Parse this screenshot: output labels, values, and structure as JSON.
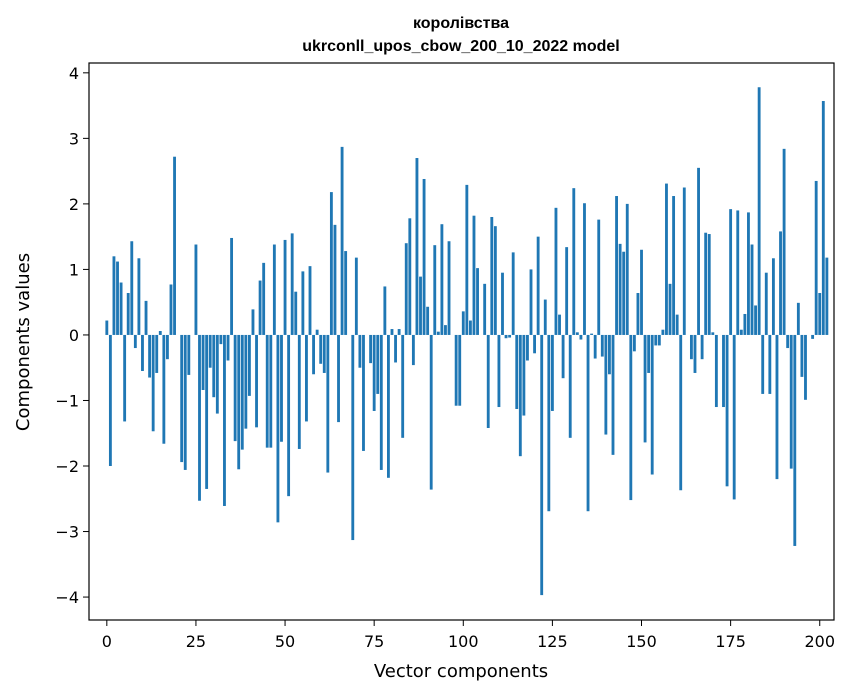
{
  "chart_data": {
    "type": "bar",
    "title": "королівства",
    "subtitle": "ukrconll_upos_cbow_200_10_2022 model",
    "xlabel": "Vector components",
    "ylabel": "Components values",
    "xlim": [
      -5,
      204
    ],
    "ylim": [
      -4.35,
      4.15
    ],
    "xticks": [
      0,
      25,
      50,
      75,
      100,
      125,
      150,
      175,
      200
    ],
    "yticks": [
      -4,
      -3,
      -2,
      -1,
      0,
      1,
      2,
      3,
      4
    ],
    "xtick_labels": [
      "0",
      "25",
      "50",
      "75",
      "100",
      "125",
      "150",
      "175",
      "200"
    ],
    "ytick_labels": [
      "−4",
      "−3",
      "−2",
      "−1",
      "0",
      "1",
      "2",
      "3",
      "4"
    ],
    "grid": false,
    "color": "#1f77b4",
    "values": [
      0.22,
      -2.0,
      1.2,
      1.12,
      0.8,
      -1.32,
      0.64,
      1.43,
      -0.2,
      1.17,
      -0.55,
      0.52,
      -0.65,
      -1.47,
      -0.58,
      0.06,
      -1.66,
      -0.37,
      0.77,
      2.72,
      0.0,
      -1.94,
      -2.06,
      -0.61,
      0.0,
      1.38,
      -2.53,
      -0.84,
      -2.35,
      -0.5,
      -0.95,
      -1.2,
      -0.14,
      -2.61,
      -0.39,
      1.48,
      -1.62,
      -2.05,
      -1.75,
      -1.43,
      -0.93,
      0.39,
      -1.41,
      0.83,
      1.1,
      -1.72,
      -1.72,
      1.38,
      -2.86,
      -1.63,
      1.45,
      -2.46,
      1.55,
      0.66,
      -1.74,
      0.97,
      -1.32,
      1.05,
      -0.6,
      0.08,
      -0.44,
      -0.58,
      -2.1,
      2.18,
      1.68,
      -1.33,
      2.87,
      1.28,
      0.0,
      -3.13,
      1.18,
      -0.5,
      -1.77,
      0.0,
      -0.43,
      -1.16,
      -0.9,
      -2.06,
      0.74,
      -2.18,
      0.09,
      -0.42,
      0.09,
      -1.57,
      1.4,
      1.78,
      -0.46,
      2.7,
      0.89,
      2.38,
      0.43,
      -2.36,
      1.37,
      0.05,
      1.69,
      0.15,
      1.43,
      0.0,
      -1.08,
      -1.08,
      0.36,
      2.29,
      0.22,
      1.82,
      1.02,
      0.0,
      0.78,
      -1.42,
      1.8,
      1.66,
      -1.1,
      0.95,
      -0.05,
      -0.04,
      1.26,
      -1.13,
      -1.85,
      -1.23,
      -0.39,
      1.0,
      -0.28,
      1.5,
      -3.97,
      0.54,
      -2.69,
      -1.16,
      1.94,
      0.31,
      -0.66,
      1.34,
      -1.57,
      2.24,
      0.04,
      -0.07,
      2.01,
      -2.69,
      0.02,
      -0.36,
      1.76,
      -0.33,
      -1.52,
      -0.6,
      -1.83,
      2.12,
      1.39,
      1.27,
      2.0,
      -2.52,
      -0.25,
      0.64,
      1.3,
      -1.64,
      -0.58,
      -2.13,
      -0.16,
      -0.16,
      0.08,
      2.31,
      0.78,
      2.12,
      0.31,
      -2.37,
      2.25,
      0.0,
      -0.37,
      -0.58,
      2.55,
      -0.37,
      1.56,
      1.54,
      0.04,
      -1.1,
      0.0,
      -1.1,
      -2.31,
      1.92,
      -2.51,
      1.9,
      0.08,
      0.32,
      1.87,
      1.38,
      0.45,
      3.78,
      -0.9,
      0.95,
      -0.9,
      1.17,
      -2.2,
      1.58,
      2.84,
      -0.2,
      -2.04,
      -3.22,
      0.49,
      -0.64,
      -0.99,
      0.0,
      -0.06,
      2.35,
      0.64,
      3.57,
      1.18
    ]
  }
}
